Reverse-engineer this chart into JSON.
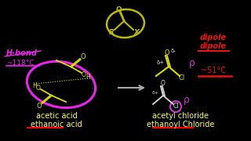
{
  "background_color": "#000000",
  "left_label1": "acetic acid",
  "left_label2": "ethanoic acid",
  "right_label1": "acetyl chloride",
  "right_label2": "ethanoyl Chloride",
  "hbond_text": "H-bond",
  "hbond_temp": "~118°C",
  "dipole_text1": "dipole",
  "dipole_text2": "dipole",
  "dipole_temp": "~51°C",
  "label_color": "#ffff44",
  "hbond_color": "#ee22ee",
  "dipole_color": "#ee1111",
  "struct_color_yellow": "#dddd00",
  "struct_color_white": "#dddddd",
  "struct_color_purple": "#cc33cc",
  "arrow_color": "#aaaaaa",
  "top_struct_color": "#bbbb00"
}
